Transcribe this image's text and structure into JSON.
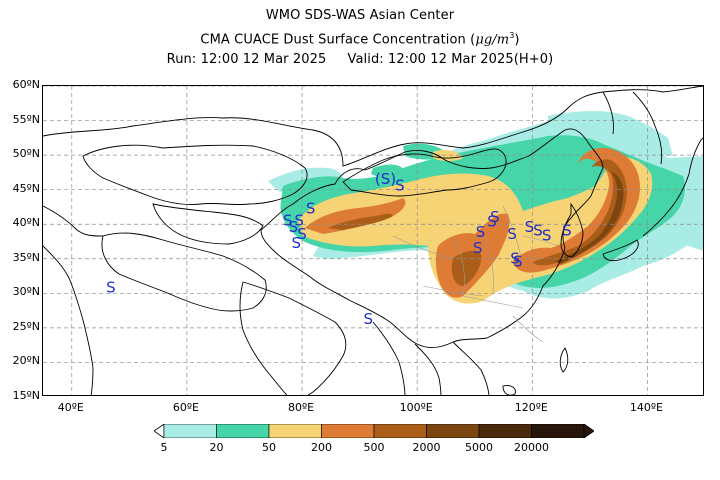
{
  "header": {
    "center": "WMO SDS-WAS Asian Center",
    "product_prefix": "CMA CUACE Dust Surface Concentration (",
    "product_unit": "μg/m",
    "product_sup": "3",
    "product_suffix": ")",
    "run": "Run: 12:00 12 Mar 2025",
    "valid": "Valid: 12:00 12 Mar 2025(H+0)"
  },
  "map": {
    "lat_labels": [
      "60ºN",
      "55ºN",
      "50ºN",
      "45ºN",
      "40ºN",
      "35ºN",
      "30ºN",
      "25ºN",
      "20ºN",
      "15ºN"
    ],
    "lon_labels": [
      "40ºE",
      "60ºE",
      "80ºE",
      "100ºE",
      "120ºE",
      "140ºE"
    ],
    "lat_values": [
      60,
      55,
      50,
      45,
      40,
      35,
      30,
      25,
      20,
      15
    ],
    "lon_values": [
      40,
      60,
      80,
      100,
      120,
      140
    ],
    "lon_range": [
      35,
      150
    ],
    "lat_range": [
      15,
      60
    ],
    "grid": true,
    "station_symbol": "S",
    "station_symbol_parenthesized": "(S)",
    "stations": [
      {
        "lon": 46.8,
        "lat": 30.8
      },
      {
        "lon": 77.5,
        "lat": 40.5
      },
      {
        "lon": 78.5,
        "lat": 39.5
      },
      {
        "lon": 79.5,
        "lat": 40.5
      },
      {
        "lon": 81.5,
        "lat": 42.2
      },
      {
        "lon": 80.0,
        "lat": 38.5
      },
      {
        "lon": 79.0,
        "lat": 37.2
      },
      {
        "lon": 94.5,
        "lat": 46.5
      },
      {
        "lon": 97.0,
        "lat": 45.5
      },
      {
        "lon": 91.5,
        "lat": 26.2
      },
      {
        "lon": 113.5,
        "lat": 41.0
      },
      {
        "lon": 113.0,
        "lat": 40.3
      },
      {
        "lon": 111.0,
        "lat": 38.8
      },
      {
        "lon": 110.5,
        "lat": 36.5
      },
      {
        "lon": 116.5,
        "lat": 38.5
      },
      {
        "lon": 119.5,
        "lat": 39.5
      },
      {
        "lon": 121.0,
        "lat": 39.0
      },
      {
        "lon": 122.5,
        "lat": 38.3
      },
      {
        "lon": 126.0,
        "lat": 39.0
      },
      {
        "lon": 117.0,
        "lat": 35.0
      },
      {
        "lon": 117.5,
        "lat": 34.5
      }
    ]
  },
  "legend": {
    "labels": [
      "5",
      "20",
      "50",
      "200",
      "500",
      "2000",
      "5000",
      "20000"
    ],
    "colors": [
      "#a9ece5",
      "#45d5a8",
      "#f6d374",
      "#de7b35",
      "#ab5d1a",
      "#7b4610",
      "#4a2a0b",
      "#27150a"
    ]
  }
}
